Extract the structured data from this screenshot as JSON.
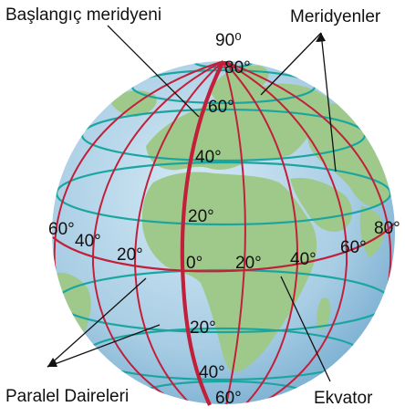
{
  "callouts": {
    "prime_meridian": "Başlangıç meridyeni",
    "meridians": "Meridyenler",
    "parallels": "Paralel Daireleri",
    "equator": "Ekvator"
  },
  "latitude_labels": {
    "n90": "90⁰",
    "n80": "80°",
    "n60": "60°",
    "n40": "40°",
    "n20": "20°",
    "zero": "0°",
    "s20": "20°",
    "s40": "40°",
    "s60": "60°"
  },
  "longitude_labels": {
    "w60": "60°",
    "w40": "40°",
    "w20": "20°",
    "e20": "20°",
    "e40": "40°",
    "e60": "60°",
    "e80": "80°"
  },
  "colors": {
    "ocean": "#a9cfe6",
    "land": "#9fc98a",
    "meridian": "#c21f3a",
    "parallel": "#1aa6a0"
  }
}
